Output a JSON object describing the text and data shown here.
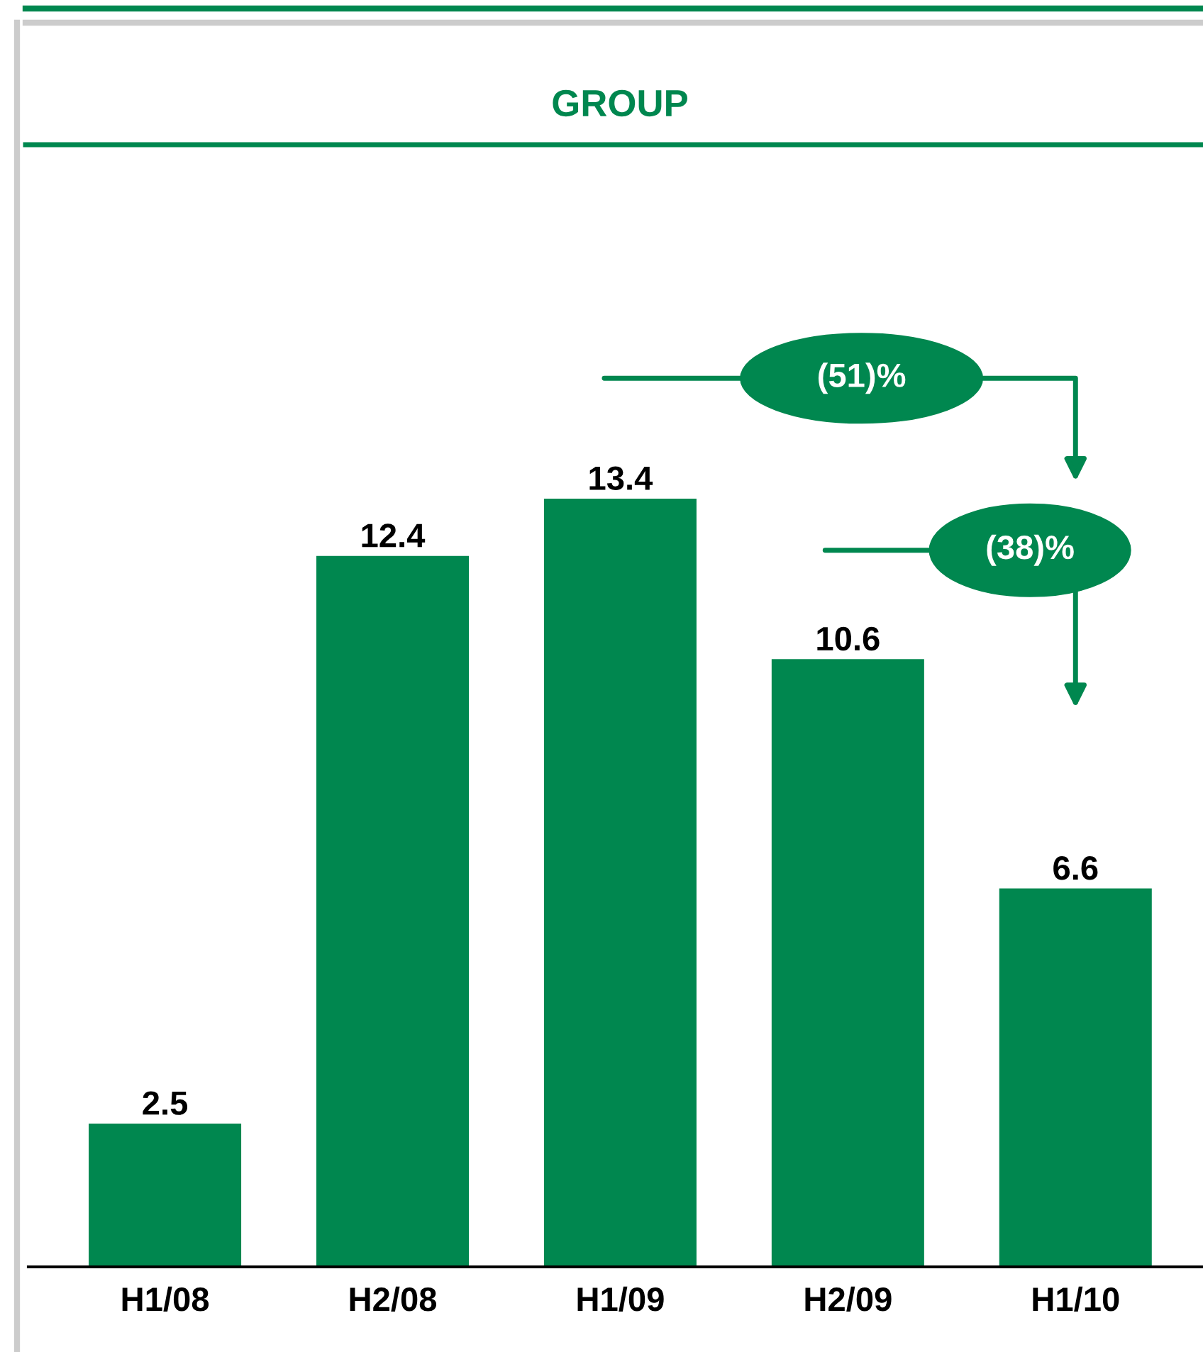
{
  "chart_data": {
    "type": "bar",
    "title": "GROUP",
    "categories": [
      "H1/08",
      "H2/08",
      "H1/09",
      "H2/09",
      "H1/10"
    ],
    "values": [
      2.5,
      12.4,
      13.4,
      10.6,
      6.6
    ],
    "color": "#00874f",
    "ylim": [
      0,
      19.5
    ],
    "tick_labels": "x",
    "data_labels": true,
    "annotations": [
      "(51)%",
      "(38)%"
    ]
  }
}
